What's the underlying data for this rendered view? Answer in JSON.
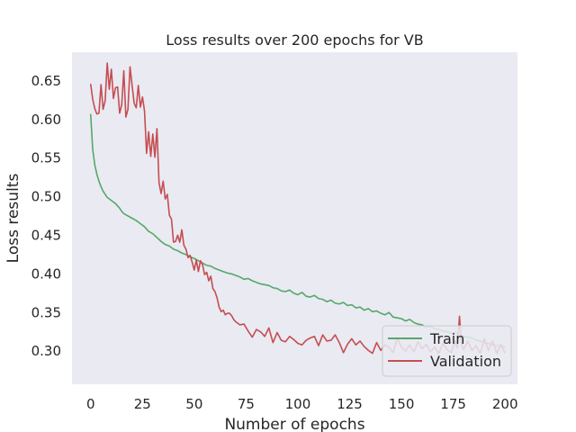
{
  "chart_data": {
    "type": "line",
    "title": "Loss results over 200 epochs for VB",
    "xlabel": "Number of epochs",
    "ylabel": "Loss results",
    "xlim": [
      -9,
      206
    ],
    "ylim": [
      0.256,
      0.686
    ],
    "x_ticks": [
      0,
      25,
      50,
      75,
      100,
      125,
      150,
      175,
      200
    ],
    "y_ticks": [
      0.3,
      0.35,
      0.4,
      0.45,
      0.5,
      0.55,
      0.6,
      0.65
    ],
    "grid": false,
    "background": "#EAEAF2",
    "legend_position": "lower right",
    "series": [
      {
        "name": "Train",
        "color": "#55A868",
        "x": [
          0,
          1,
          2,
          3,
          4,
          5,
          6,
          8,
          10,
          12,
          14,
          15,
          16,
          18,
          20,
          22,
          24,
          26,
          28,
          30,
          32,
          34,
          36,
          38,
          40,
          42,
          44,
          46,
          48,
          50,
          52,
          54,
          56,
          58,
          60,
          62,
          64,
          66,
          68,
          70,
          72,
          74,
          76,
          78,
          80,
          82,
          84,
          86,
          88,
          90,
          92,
          94,
          96,
          98,
          100,
          102,
          104,
          106,
          108,
          110,
          112,
          114,
          116,
          118,
          120,
          122,
          124,
          126,
          128,
          130,
          132,
          134,
          136,
          138,
          140,
          142,
          144,
          146,
          148,
          150,
          152,
          154,
          156,
          158,
          160,
          162,
          164,
          166,
          168,
          170,
          172,
          174,
          176,
          178,
          180,
          182,
          184,
          186,
          188,
          190,
          192,
          194,
          196,
          198,
          200
        ],
        "values": [
          0.606,
          0.56,
          0.54,
          0.528,
          0.519,
          0.512,
          0.506,
          0.498,
          0.494,
          0.49,
          0.484,
          0.48,
          0.477,
          0.474,
          0.471,
          0.468,
          0.464,
          0.46,
          0.454,
          0.451,
          0.446,
          0.441,
          0.437,
          0.435,
          0.431,
          0.429,
          0.426,
          0.424,
          0.421,
          0.419,
          0.416,
          0.413,
          0.41,
          0.409,
          0.406,
          0.404,
          0.402,
          0.4,
          0.399,
          0.397,
          0.395,
          0.392,
          0.393,
          0.39,
          0.388,
          0.386,
          0.385,
          0.384,
          0.381,
          0.38,
          0.377,
          0.376,
          0.378,
          0.374,
          0.372,
          0.375,
          0.37,
          0.369,
          0.371,
          0.367,
          0.366,
          0.363,
          0.365,
          0.361,
          0.36,
          0.362,
          0.358,
          0.359,
          0.355,
          0.356,
          0.352,
          0.354,
          0.35,
          0.351,
          0.348,
          0.346,
          0.349,
          0.343,
          0.342,
          0.341,
          0.338,
          0.34,
          0.336,
          0.334,
          0.333,
          0.33,
          0.331,
          0.328,
          0.327,
          0.325,
          0.324,
          0.322,
          0.323,
          0.32,
          0.318,
          0.317,
          0.316,
          0.313,
          0.312,
          0.31,
          0.309,
          0.307,
          0.306,
          0.305,
          0.304
        ]
      },
      {
        "name": "Validation",
        "color": "#C44E52",
        "x": [
          0,
          1,
          2,
          3,
          4,
          5,
          6,
          7,
          8,
          9,
          10,
          11,
          12,
          13,
          14,
          15,
          16,
          17,
          18,
          19,
          20,
          21,
          22,
          23,
          24,
          25,
          26,
          27,
          28,
          29,
          30,
          31,
          32,
          33,
          34,
          35,
          36,
          37,
          38,
          39,
          40,
          41,
          42,
          43,
          44,
          45,
          46,
          47,
          48,
          49,
          50,
          51,
          52,
          53,
          54,
          55,
          56,
          57,
          58,
          59,
          60,
          61,
          62,
          63,
          64,
          65,
          66,
          67,
          68,
          69,
          70,
          72,
          74,
          76,
          78,
          80,
          82,
          84,
          86,
          88,
          90,
          92,
          94,
          96,
          98,
          100,
          102,
          104,
          106,
          108,
          110,
          112,
          114,
          116,
          118,
          120,
          122,
          124,
          126,
          128,
          130,
          132,
          134,
          136,
          138,
          140,
          142,
          144,
          146,
          148,
          150,
          152,
          154,
          156,
          158,
          160,
          162,
          164,
          166,
          168,
          170,
          172,
          174,
          176,
          177,
          178,
          179,
          180,
          182,
          184,
          186,
          188,
          190,
          192,
          194,
          196,
          198,
          200
        ],
        "values": [
          0.645,
          0.625,
          0.613,
          0.606,
          0.607,
          0.644,
          0.612,
          0.623,
          0.672,
          0.638,
          0.664,
          0.626,
          0.64,
          0.641,
          0.607,
          0.618,
          0.662,
          0.602,
          0.612,
          0.667,
          0.643,
          0.62,
          0.614,
          0.643,
          0.615,
          0.628,
          0.61,
          0.555,
          0.583,
          0.551,
          0.58,
          0.55,
          0.587,
          0.517,
          0.503,
          0.519,
          0.496,
          0.502,
          0.475,
          0.47,
          0.44,
          0.441,
          0.449,
          0.44,
          0.456,
          0.436,
          0.431,
          0.42,
          0.423,
          0.414,
          0.404,
          0.417,
          0.402,
          0.416,
          0.411,
          0.398,
          0.401,
          0.39,
          0.396,
          0.38,
          0.376,
          0.368,
          0.356,
          0.35,
          0.352,
          0.346,
          0.348,
          0.348,
          0.345,
          0.34,
          0.337,
          0.333,
          0.334,
          0.325,
          0.317,
          0.327,
          0.324,
          0.318,
          0.329,
          0.31,
          0.323,
          0.313,
          0.311,
          0.318,
          0.314,
          0.309,
          0.307,
          0.313,
          0.316,
          0.318,
          0.306,
          0.32,
          0.312,
          0.313,
          0.32,
          0.31,
          0.297,
          0.308,
          0.315,
          0.307,
          0.312,
          0.305,
          0.3,
          0.296,
          0.31,
          0.3,
          0.307,
          0.304,
          0.297,
          0.316,
          0.304,
          0.299,
          0.307,
          0.298,
          0.311,
          0.302,
          0.308,
          0.298,
          0.304,
          0.296,
          0.309,
          0.301,
          0.297,
          0.312,
          0.303,
          0.344,
          0.308,
          0.301,
          0.312,
          0.3,
          0.306,
          0.296,
          0.315,
          0.3,
          0.312,
          0.296,
          0.308,
          0.296
        ]
      }
    ]
  }
}
